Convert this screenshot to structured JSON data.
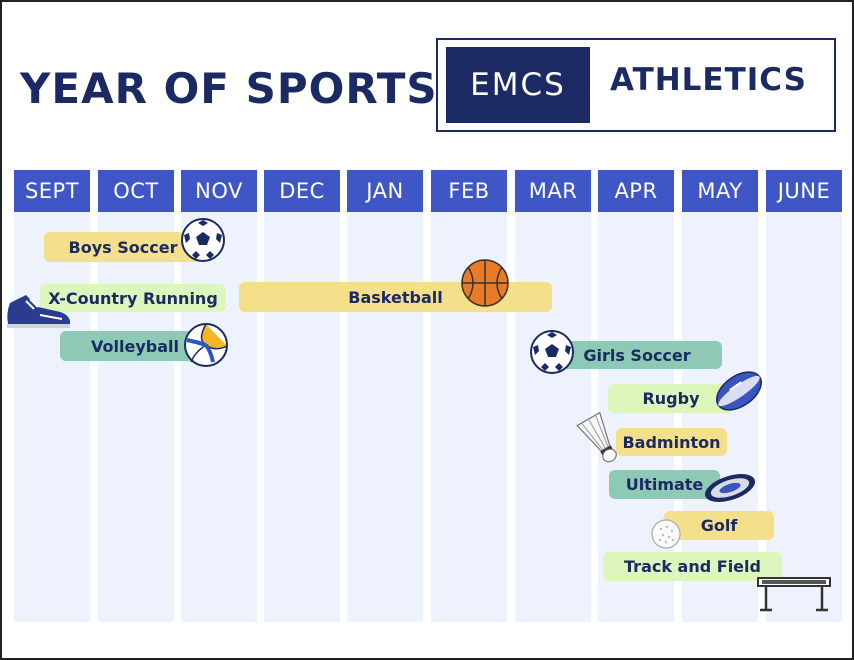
{
  "header": {
    "title": "YEAR OF SPORTS",
    "logo_left": "EMCS",
    "logo_right": "ATHLETICS"
  },
  "months": [
    "SEPT",
    "OCT",
    "NOV",
    "DEC",
    "JAN",
    "FEB",
    "MAR",
    "APR",
    "MAY",
    "JUNE"
  ],
  "sports": [
    {
      "name": "Boys Soccer",
      "icon": "soccer-ball-icon"
    },
    {
      "name": "X-Country Running",
      "icon": "running-shoe-icon"
    },
    {
      "name": "Basketball",
      "icon": "basketball-icon"
    },
    {
      "name": "Volleyball",
      "icon": "volleyball-icon"
    },
    {
      "name": "Girls Soccer",
      "icon": "soccer-ball-icon"
    },
    {
      "name": "Rugby",
      "icon": "rugby-ball-icon"
    },
    {
      "name": "Badminton",
      "icon": "shuttlecock-icon"
    },
    {
      "name": "Ultimate",
      "icon": "frisbee-icon"
    },
    {
      "name": "Golf",
      "icon": "golf-ball-icon"
    },
    {
      "name": "Track and Field",
      "icon": "hurdle-icon"
    }
  ],
  "colors": {
    "navy": "#1b2a63",
    "month_header": "#3f56c7",
    "column": "#eef2fc",
    "yellow_bar": "#f4df8a",
    "teal_bar": "#8ec9b5",
    "lime_bar": "#dcf6bc"
  }
}
